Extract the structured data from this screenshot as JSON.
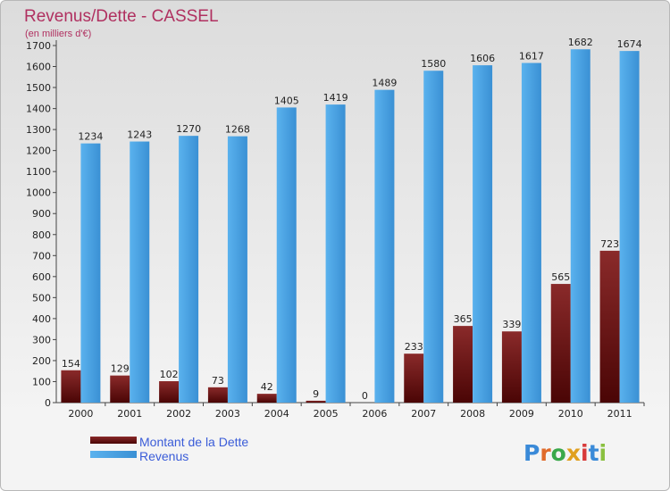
{
  "chart_data": {
    "type": "bar",
    "title": "Revenus/Dette - CASSEL",
    "subtitle": "(en milliers d'€)",
    "categories": [
      "2000",
      "2001",
      "2002",
      "2003",
      "2004",
      "2005",
      "2006",
      "2007",
      "2008",
      "2009",
      "2010",
      "2011"
    ],
    "series": [
      {
        "name": "Montant de la Dette",
        "values": [
          154,
          129,
          102,
          73,
          42,
          9,
          0,
          233,
          365,
          339,
          565,
          723
        ],
        "color": "#6b1010"
      },
      {
        "name": "Revenus",
        "values": [
          1234,
          1243,
          1270,
          1268,
          1405,
          1419,
          1489,
          1580,
          1606,
          1617,
          1682,
          1674
        ],
        "color": "#4aa0e0"
      }
    ],
    "ylim": [
      0,
      1700
    ],
    "ytick_step": 100,
    "grid": false,
    "legend_position": "bottom-left"
  },
  "brand": {
    "letters": [
      "P",
      "r",
      "o",
      "x",
      "i",
      "t",
      "i"
    ],
    "colors": [
      "#3a8ad8",
      "#e06a2a",
      "#3aa84a",
      "#e0a020",
      "#d83a3a",
      "#3a8ad8",
      "#8ac040"
    ]
  }
}
